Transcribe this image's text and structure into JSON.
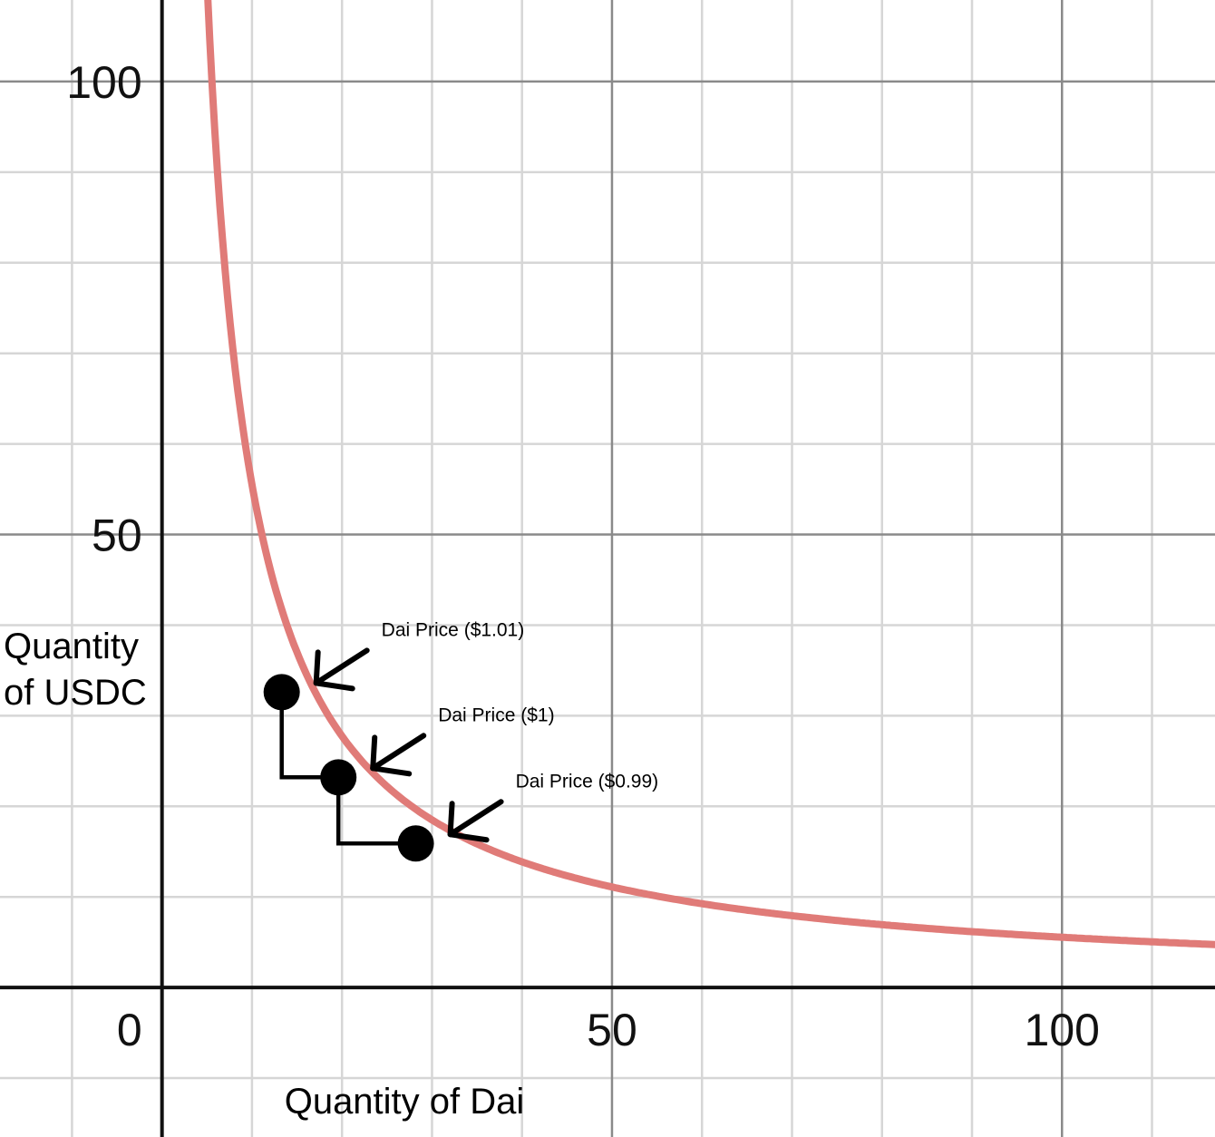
{
  "chart_data": {
    "type": "line",
    "title": "",
    "xlabel": "Quantity of Dai",
    "ylabel_lines": [
      "Quantity",
      "of USDC"
    ],
    "xlim": [
      -18,
      117
    ],
    "ylim": [
      -16.5,
      109
    ],
    "x_ticks": [
      {
        "value": 50,
        "label": "50"
      },
      {
        "value": 100,
        "label": "100"
      }
    ],
    "y_ticks": [
      {
        "value": 50,
        "label": "50"
      },
      {
        "value": 100,
        "label": "100"
      }
    ],
    "origin_label": "0",
    "grid": true,
    "major_grid_step": 50,
    "minor_grid_step": 10,
    "curve": {
      "equation": "x*y=k",
      "k": 555,
      "x_range": [
        3.6,
        117
      ],
      "color": "#e07b78"
    },
    "points": [
      {
        "x": 13.3,
        "y": 32.6,
        "label": "Dai Price ($1.01)"
      },
      {
        "x": 19.6,
        "y": 23.2,
        "label": "Dai Price ($1)"
      },
      {
        "x": 28.2,
        "y": 15.9,
        "label": "Dai Price ($0.99)"
      }
    ]
  }
}
